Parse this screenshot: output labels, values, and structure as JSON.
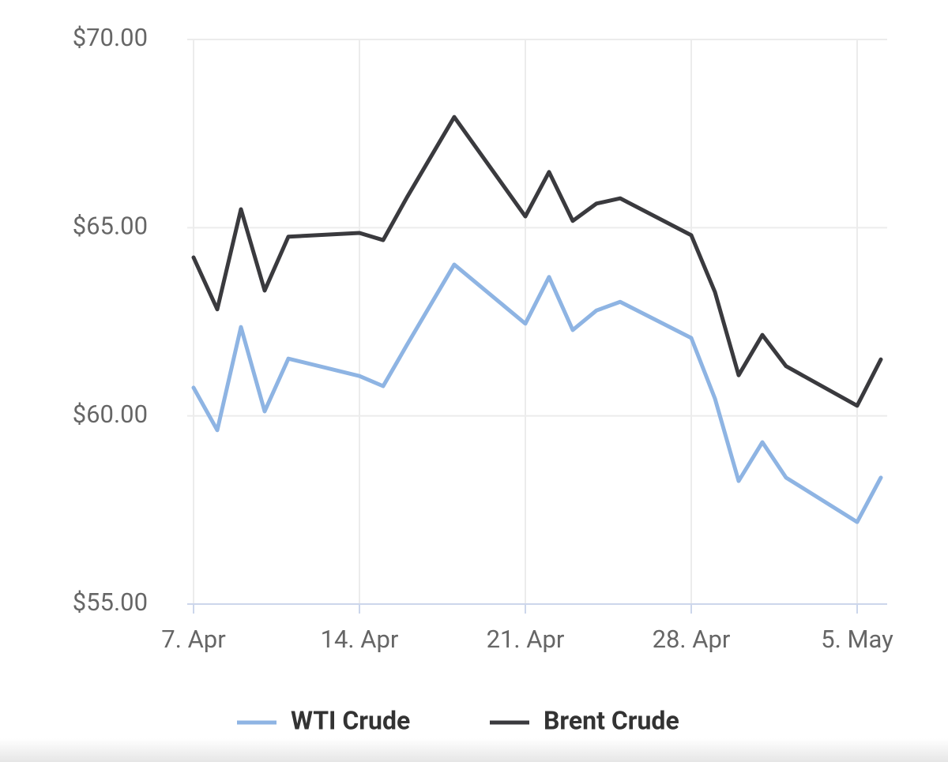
{
  "chart_data": {
    "type": "line",
    "x": [
      "Apr 7",
      "Apr 8",
      "Apr 9",
      "Apr 10",
      "Apr 11",
      "Apr 14",
      "Apr 15",
      "Apr 16",
      "Apr 18",
      "Apr 21",
      "Apr 22",
      "Apr 23",
      "Apr 24",
      "Apr 25",
      "Apr 28",
      "Apr 29",
      "Apr 30",
      "May 1",
      "May 2",
      "May 5",
      "May 6"
    ],
    "series": [
      {
        "name": "WTI Crude",
        "color": "#8eb4e3",
        "values": [
          60.75,
          59.62,
          62.36,
          60.12,
          61.52,
          61.06,
          60.79,
          61.88,
          64.02,
          62.45,
          63.69,
          62.28,
          62.8,
          63.03,
          62.07,
          60.46,
          58.27,
          59.3,
          58.36,
          57.18,
          58.36
        ]
      },
      {
        "name": "Brent Crude",
        "color": "#3a3a3e",
        "values": [
          64.21,
          62.83,
          65.49,
          63.33,
          64.76,
          64.86,
          64.67,
          65.8,
          67.94,
          65.3,
          66.48,
          65.18,
          65.64,
          65.78,
          64.8,
          63.29,
          61.08,
          62.15,
          61.32,
          60.27,
          61.5
        ]
      }
    ],
    "ylim": [
      55,
      70
    ],
    "yticks": [
      {
        "value": 55,
        "label": "$55.00"
      },
      {
        "value": 60,
        "label": "$60.00"
      },
      {
        "value": 65,
        "label": "$65.00"
      },
      {
        "value": 70,
        "label": "$70.00"
      }
    ],
    "xlim": [
      "Apr 7",
      "May 6"
    ],
    "xticks": [
      {
        "value": "Apr 7",
        "label": "7. Apr"
      },
      {
        "value": "Apr 14",
        "label": "14. Apr"
      },
      {
        "value": "Apr 21",
        "label": "21. Apr"
      },
      {
        "value": "Apr 28",
        "label": "28. Apr"
      },
      {
        "value": "May 5",
        "label": "5. May"
      }
    ],
    "grid": true
  }
}
